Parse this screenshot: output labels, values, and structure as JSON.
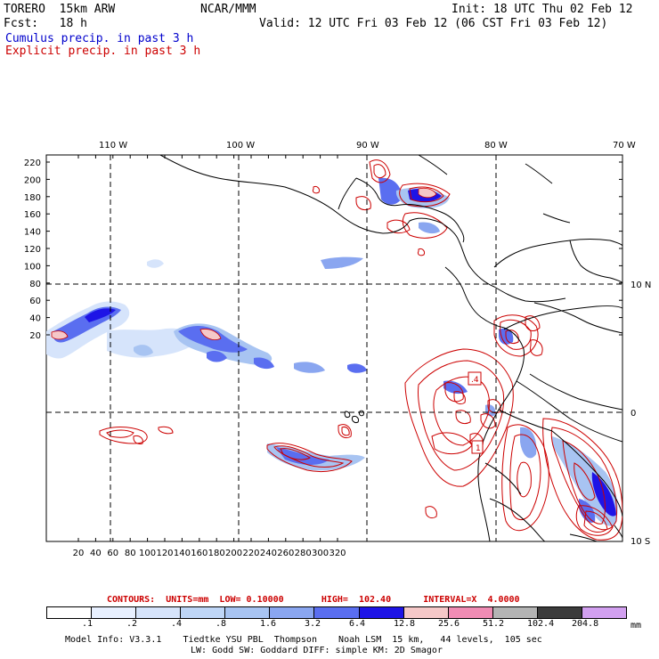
{
  "header": {
    "model": "TORERO  15km ARW",
    "org": "NCAR/MMM",
    "init": "Init: 18 UTC Thu 02 Feb 12",
    "fcst": "Fcst:   18 h",
    "valid": "Valid: 12 UTC Fri 03 Feb 12 (06 CST Fri 03 Feb 12)",
    "field1": "Cumulus precip. in past 3 h",
    "field2": "Explicit precip. in past 3 h"
  },
  "map": {
    "lon_labels": [
      "110 W",
      "100 W",
      "90 W",
      "80 W",
      "70 W"
    ],
    "lat_labels": [
      "10 N",
      "0",
      "10 S"
    ],
    "y_ticks": [
      "220",
      "200",
      "180",
      "160",
      "140",
      "120",
      "100",
      "80",
      "60",
      "40",
      "20"
    ],
    "x_ticks": [
      "20",
      "40",
      "60",
      "80",
      "100",
      "120",
      "140",
      "160",
      "180",
      "200",
      "220",
      "240",
      "260",
      "280",
      "300",
      "320"
    ],
    "contour_labels": [
      ".4",
      "1"
    ]
  },
  "legend": {
    "contours_text": "CONTOURS:  UNITS=mm  LOW= 0.10000       HIGH=  102.40      INTERVAL=X  4.0000",
    "units": "mm",
    "levels": [
      ".1",
      ".2",
      ".4",
      ".8",
      "1.6",
      "3.2",
      "6.4",
      "12.8",
      "25.6",
      "51.2",
      "102.4",
      "204.8"
    ],
    "colors": [
      "#ffffff",
      "#e8f0ff",
      "#d6e4fb",
      "#bfd6f7",
      "#a8c4f2",
      "#8aa6f0",
      "#5a6ef0",
      "#1e14e6",
      "#f5c8c8",
      "#f08cb4",
      "#b4b4b4",
      "#3c3c3c",
      "#d2a0f0"
    ]
  },
  "footer": {
    "line1": "Model Info: V3.3.1    Tiedtke YSU PBL  Thompson    Noah LSM  15 km,   44 levels,  105 sec",
    "line2": "LW: Godd SW: Goddard DIFF: simple KM: 2D Smagor"
  },
  "colors": {
    "cumulus_blue": "#1e14e6",
    "explicit_red": "#cc0000",
    "grid": "#000000"
  }
}
